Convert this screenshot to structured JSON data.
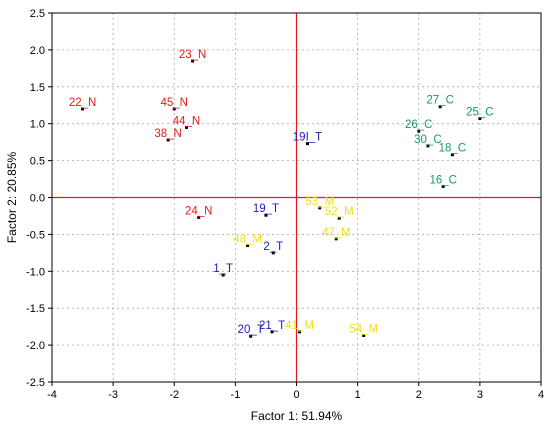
{
  "chart_data": {
    "type": "scatter",
    "title": "",
    "xlabel": "Factor 1: 51.94%",
    "ylabel": "Factor 2: 20.85%",
    "xlim": [
      -4,
      4
    ],
    "ylim": [
      -2.5,
      2.5
    ],
    "xticks": [
      "-4",
      "-3",
      "-2",
      "-1",
      "0",
      "1",
      "2",
      "3",
      "4"
    ],
    "yticks": [
      "2.5",
      "2.0",
      "1.5",
      "1.0",
      "0.5",
      "0.0",
      "-0.5",
      "-1.0",
      "-1.5",
      "-2.0",
      "-2.5"
    ],
    "grid": true,
    "reference_lines": {
      "x": 0,
      "y": 0,
      "color": "#e8191b"
    },
    "group_colors": {
      "N": "#e8191b",
      "C": "#1a9a5c",
      "T": "#1f1fb4",
      "M": "#eee01b"
    },
    "points": [
      {
        "label": "23_N",
        "group": "N",
        "x": -1.7,
        "y": 1.85
      },
      {
        "label": "22_N",
        "group": "N",
        "x": -3.5,
        "y": 1.2
      },
      {
        "label": "45_N",
        "group": "N",
        "x": -2.0,
        "y": 1.2
      },
      {
        "label": "44_N",
        "group": "N",
        "x": -1.8,
        "y": 0.95
      },
      {
        "label": "38_N",
        "group": "N",
        "x": -2.1,
        "y": 0.78
      },
      {
        "label": "24_N",
        "group": "N",
        "x": -1.6,
        "y": -0.27
      },
      {
        "label": "27_C",
        "group": "C",
        "x": 2.35,
        "y": 1.23
      },
      {
        "label": "25_C",
        "group": "C",
        "x": 3.0,
        "y": 1.07
      },
      {
        "label": "26_C",
        "group": "C",
        "x": 2.0,
        "y": 0.9
      },
      {
        "label": "30_C",
        "group": "C",
        "x": 2.15,
        "y": 0.7
      },
      {
        "label": "18_C",
        "group": "C",
        "x": 2.55,
        "y": 0.58
      },
      {
        "label": "16_C",
        "group": "C",
        "x": 2.4,
        "y": 0.15
      },
      {
        "label": "19I_T",
        "group": "T",
        "x": 0.18,
        "y": 0.73
      },
      {
        "label": "19_T",
        "group": "T",
        "x": -0.5,
        "y": -0.24
      },
      {
        "label": "2_T",
        "group": "T",
        "x": -0.38,
        "y": -0.75
      },
      {
        "label": "1_T",
        "group": "T",
        "x": -1.2,
        "y": -1.05
      },
      {
        "label": "20_T",
        "group": "T",
        "x": -0.75,
        "y": -1.88
      },
      {
        "label": "21_T",
        "group": "T",
        "x": -0.4,
        "y": -1.82
      },
      {
        "label": "53_M",
        "group": "M",
        "x": 0.38,
        "y": -0.14
      },
      {
        "label": "52_M",
        "group": "M",
        "x": 0.7,
        "y": -0.28
      },
      {
        "label": "47_M",
        "group": "M",
        "x": 0.65,
        "y": -0.56
      },
      {
        "label": "48_M",
        "group": "M",
        "x": -0.8,
        "y": -0.65
      },
      {
        "label": "41_M",
        "group": "M",
        "x": 0.05,
        "y": -1.82
      },
      {
        "label": "54_M",
        "group": "M",
        "x": 1.1,
        "y": -1.87
      }
    ]
  }
}
